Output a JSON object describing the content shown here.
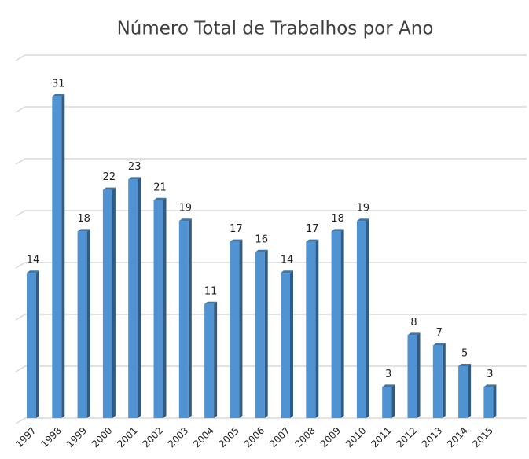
{
  "chart_data": {
    "type": "bar",
    "title": "Número Total de Trabalhos por Ano",
    "categories": [
      "1997",
      "1998",
      "1999",
      "2000",
      "2001",
      "2002",
      "2003",
      "2004",
      "2005",
      "2006",
      "2007",
      "2008",
      "2009",
      "2010",
      "2011",
      "2012",
      "2013",
      "2014",
      "2015"
    ],
    "values": [
      14,
      31,
      18,
      22,
      23,
      21,
      19,
      11,
      17,
      16,
      14,
      17,
      18,
      19,
      3,
      8,
      7,
      5,
      3
    ],
    "color": "#4f93d2",
    "ylim": [
      0,
      35
    ],
    "yticks": [
      0,
      5,
      10,
      15,
      20,
      25,
      30,
      35
    ],
    "grid": true
  }
}
